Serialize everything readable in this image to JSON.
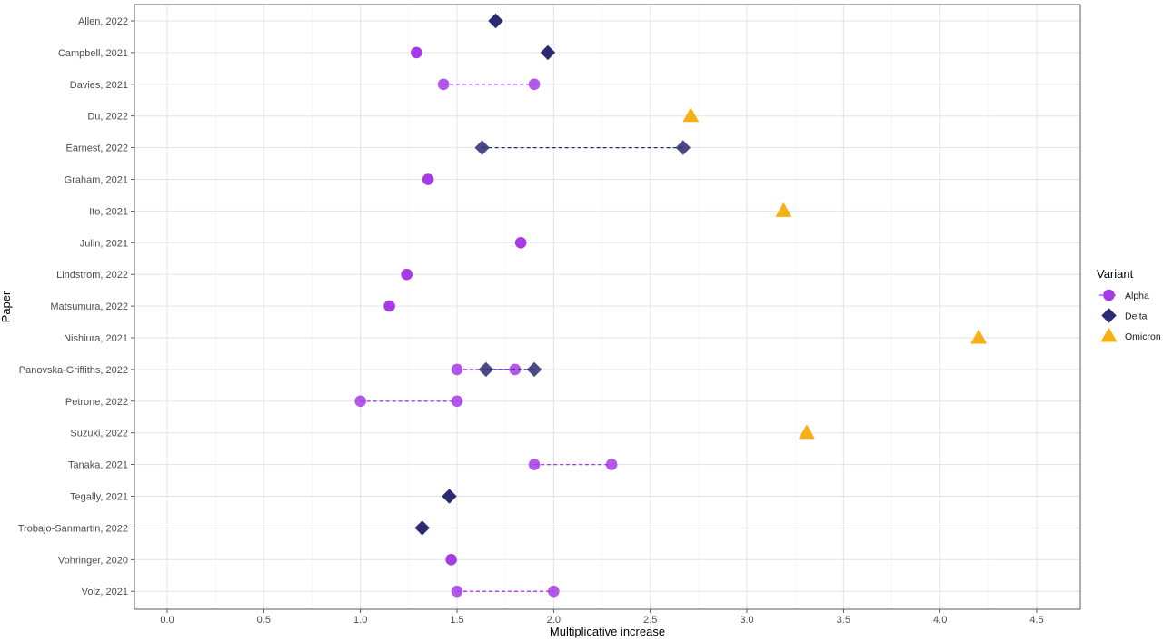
{
  "chart_data": {
    "type": "scatter",
    "xlabel": "Multiplicative increase",
    "ylabel": "Paper",
    "xlim": [
      -0.17,
      4.7
    ],
    "x_ticks": [
      0.0,
      0.5,
      1.0,
      1.5,
      2.0,
      2.5,
      3.0,
      3.5,
      4.0,
      4.5
    ],
    "x_tick_labels": [
      "0.0",
      "0.5",
      "1.0",
      "1.5",
      "2.0",
      "2.5",
      "3.0",
      "3.5",
      "4.0",
      "4.5"
    ],
    "grid": true,
    "legend_title": "Variant",
    "legend_position": "right",
    "categories": [
      "Allen, 2022",
      "Campbell, 2021",
      "Davies, 2021",
      "Du, 2022",
      "Earnest, 2022",
      "Graham, 2021",
      "Ito, 2021",
      "Julin, 2021",
      "Lindstrom, 2022",
      "Matsumura, 2022",
      "Nishiura, 2021",
      "Panovska-Griffiths, 2022",
      "Petrone, 2022",
      "Suzuki, 2022",
      "Tanaka, 2021",
      "Tegally, 2021",
      "Trobajo-Sanmartin, 2022",
      "Vohringer, 2020",
      "Volz, 2021"
    ],
    "series": [
      {
        "name": "Alpha",
        "color": "#a53be6",
        "marker": "circle",
        "entries": [
          {
            "paper": "Campbell, 2021",
            "values": [
              1.29
            ]
          },
          {
            "paper": "Davies, 2021",
            "values": [
              1.43,
              1.9
            ]
          },
          {
            "paper": "Graham, 2021",
            "values": [
              1.35
            ]
          },
          {
            "paper": "Julin, 2021",
            "values": [
              1.83
            ]
          },
          {
            "paper": "Lindstrom, 2022",
            "values": [
              1.24
            ]
          },
          {
            "paper": "Matsumura, 2022",
            "values": [
              1.15
            ]
          },
          {
            "paper": "Panovska-Griffiths, 2022",
            "values": [
              1.5,
              1.8
            ]
          },
          {
            "paper": "Petrone, 2022",
            "values": [
              1.0,
              1.5
            ]
          },
          {
            "paper": "Tanaka, 2021",
            "values": [
              1.9,
              2.3
            ]
          },
          {
            "paper": "Vohringer, 2020",
            "values": [
              1.47
            ]
          },
          {
            "paper": "Volz, 2021",
            "values": [
              1.5,
              2.0
            ]
          }
        ]
      },
      {
        "name": "Delta",
        "color": "#2b2a72",
        "marker": "diamond",
        "entries": [
          {
            "paper": "Allen, 2022",
            "values": [
              1.7
            ]
          },
          {
            "paper": "Campbell, 2021",
            "values": [
              1.97
            ]
          },
          {
            "paper": "Earnest, 2022",
            "values": [
              1.63,
              2.67
            ]
          },
          {
            "paper": "Panovska-Griffiths, 2022",
            "values": [
              1.65,
              1.9
            ]
          },
          {
            "paper": "Tegally, 2021",
            "values": [
              1.46
            ]
          },
          {
            "paper": "Trobajo-Sanmartin, 2022",
            "values": [
              1.32
            ]
          }
        ]
      },
      {
        "name": "Omicron",
        "color": "#f5b014",
        "marker": "triangle",
        "entries": [
          {
            "paper": "Du, 2022",
            "values": [
              2.71
            ]
          },
          {
            "paper": "Ito, 2021",
            "values": [
              3.19
            ]
          },
          {
            "paper": "Nishiura, 2021",
            "values": [
              4.2
            ]
          },
          {
            "paper": "Suzuki, 2022",
            "values": [
              3.31
            ]
          }
        ]
      }
    ]
  }
}
